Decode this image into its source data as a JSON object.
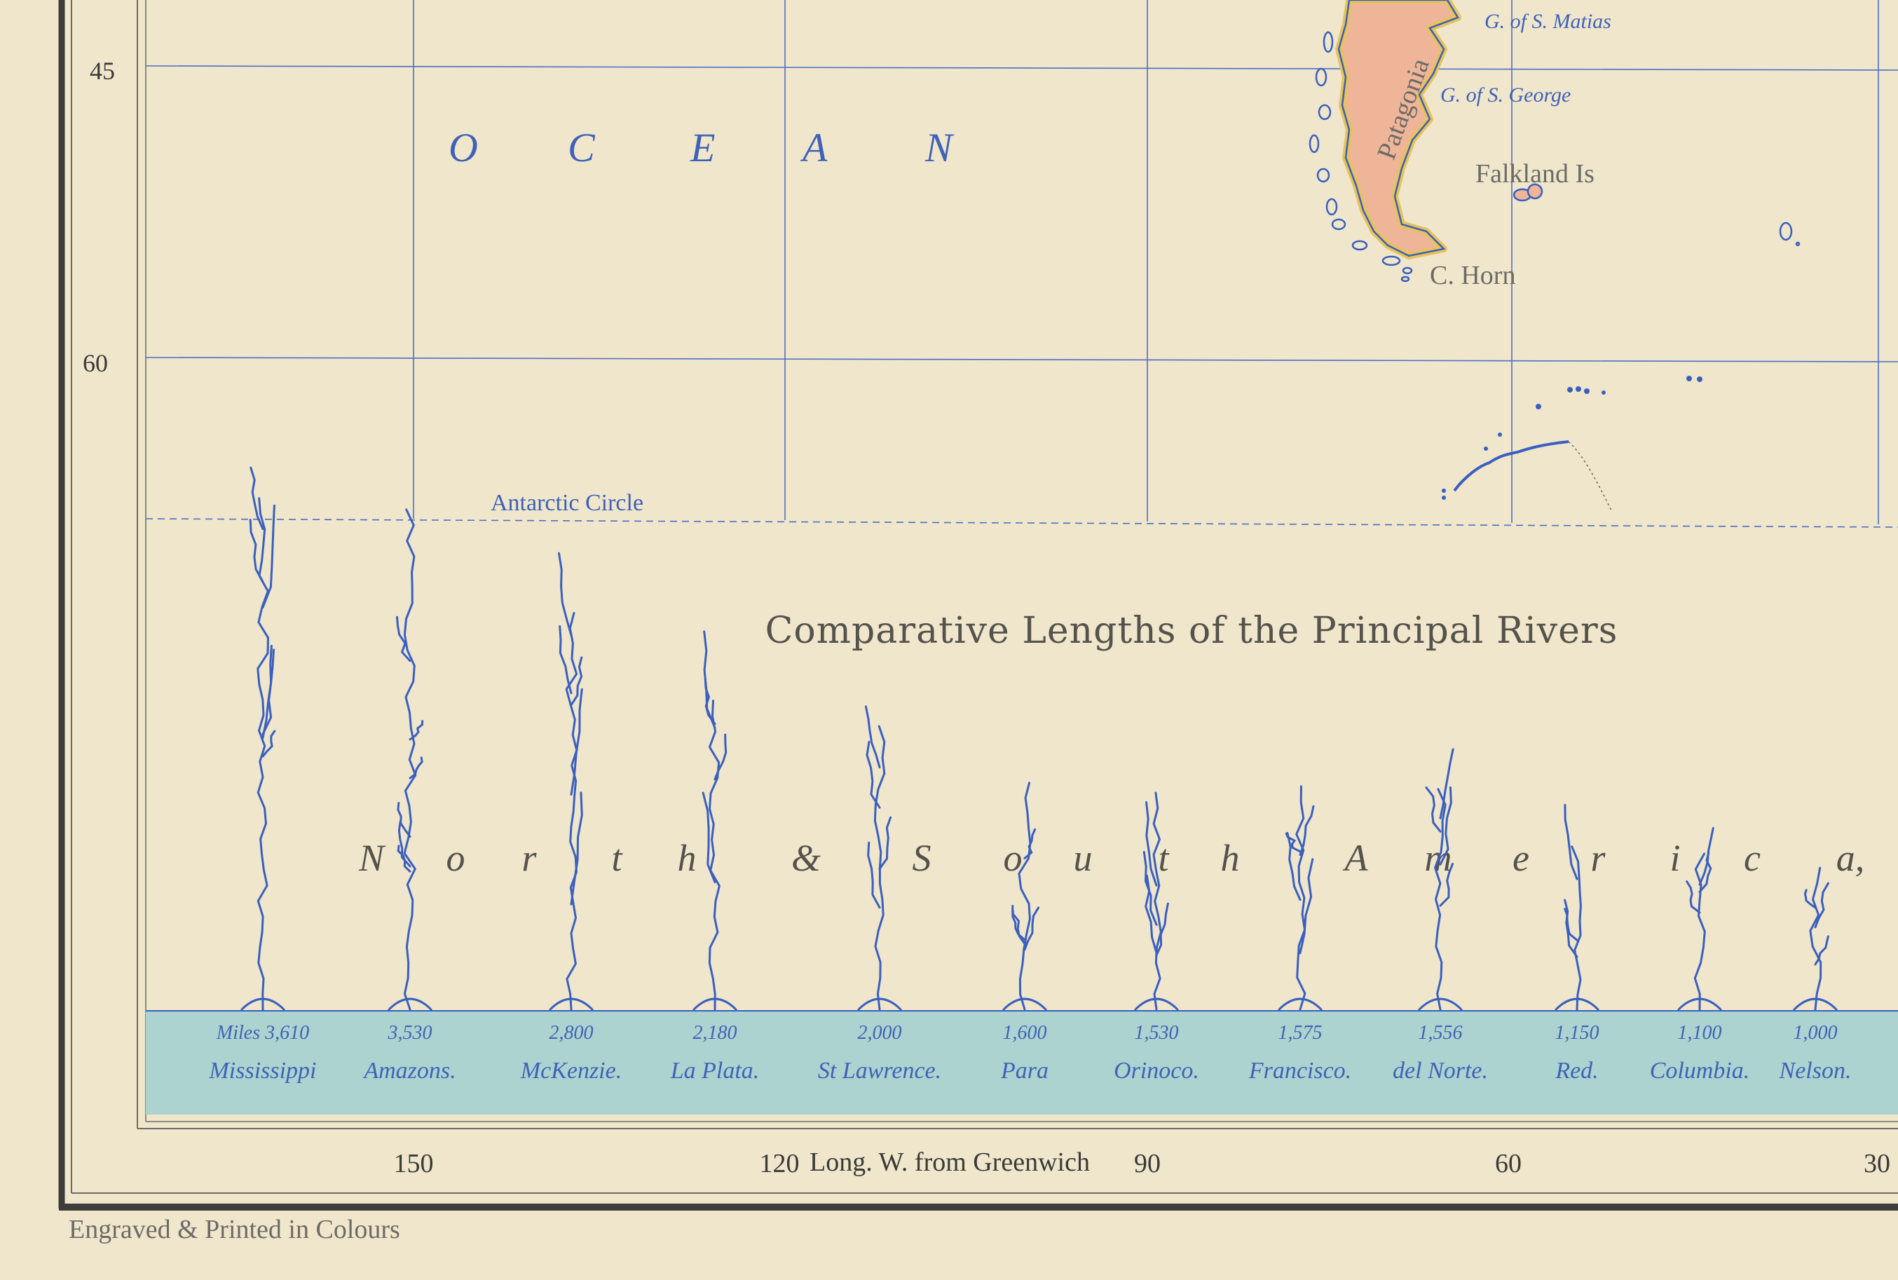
{
  "latitudes": [
    "45",
    "60"
  ],
  "longitudes": [
    "150",
    "120",
    "90",
    "60",
    "30"
  ],
  "long_label": "Long. W. from Greenwich",
  "ocean_letters": [
    "O",
    "C",
    "E",
    "A",
    "N"
  ],
  "places": {
    "g_matias": "G. of S. Matias",
    "g_george": "G. of S. George",
    "patagonia": "Patagonia",
    "falkland": "Falkland Is",
    "c_horn": "C. Horn",
    "antarctic_circle": "Antarctic Circle"
  },
  "rivers_title": "Comparative Lengths of the Principal Rivers",
  "continent_letters": [
    "N",
    "o",
    "r",
    "t",
    "h",
    "&",
    "S",
    "o",
    "u",
    "t",
    "h",
    "A",
    "m",
    "e",
    "r",
    "i",
    "c",
    "a,"
  ],
  "miles_prefix": "Miles",
  "rivers": [
    {
      "name": "Mississippi",
      "miles": "3,610",
      "value": 3610
    },
    {
      "name": "Amazons.",
      "miles": "3,530",
      "value": 3530
    },
    {
      "name": "McKenzie.",
      "miles": "2,800",
      "value": 2800
    },
    {
      "name": "La Plata.",
      "miles": "2,180",
      "value": 2180
    },
    {
      "name": "St Lawrence.",
      "miles": "2,000",
      "value": 2000
    },
    {
      "name": "Para",
      "miles": "1,600",
      "value": 1600
    },
    {
      "name": "Orinoco.",
      "miles": "1,530",
      "value": 1530
    },
    {
      "name": "Francisco.",
      "miles": "1,575",
      "value": 1575
    },
    {
      "name": "del Norte.",
      "miles": "1,556",
      "value": 1556
    },
    {
      "name": "Red.",
      "miles": "1,150",
      "value": 1150
    },
    {
      "name": "Columbia.",
      "miles": "1,100",
      "value": 1100
    },
    {
      "name": "Nelson.",
      "miles": "1,000",
      "value": 1000
    }
  ],
  "footer": "Engraved & Printed in Colours",
  "colors": {
    "paper": "#efe6cc",
    "grid": "#4d6fc2",
    "river": "#3a5fbf",
    "band": "#acd3cf",
    "land": "#efb599",
    "coast": "#e7c35a"
  }
}
